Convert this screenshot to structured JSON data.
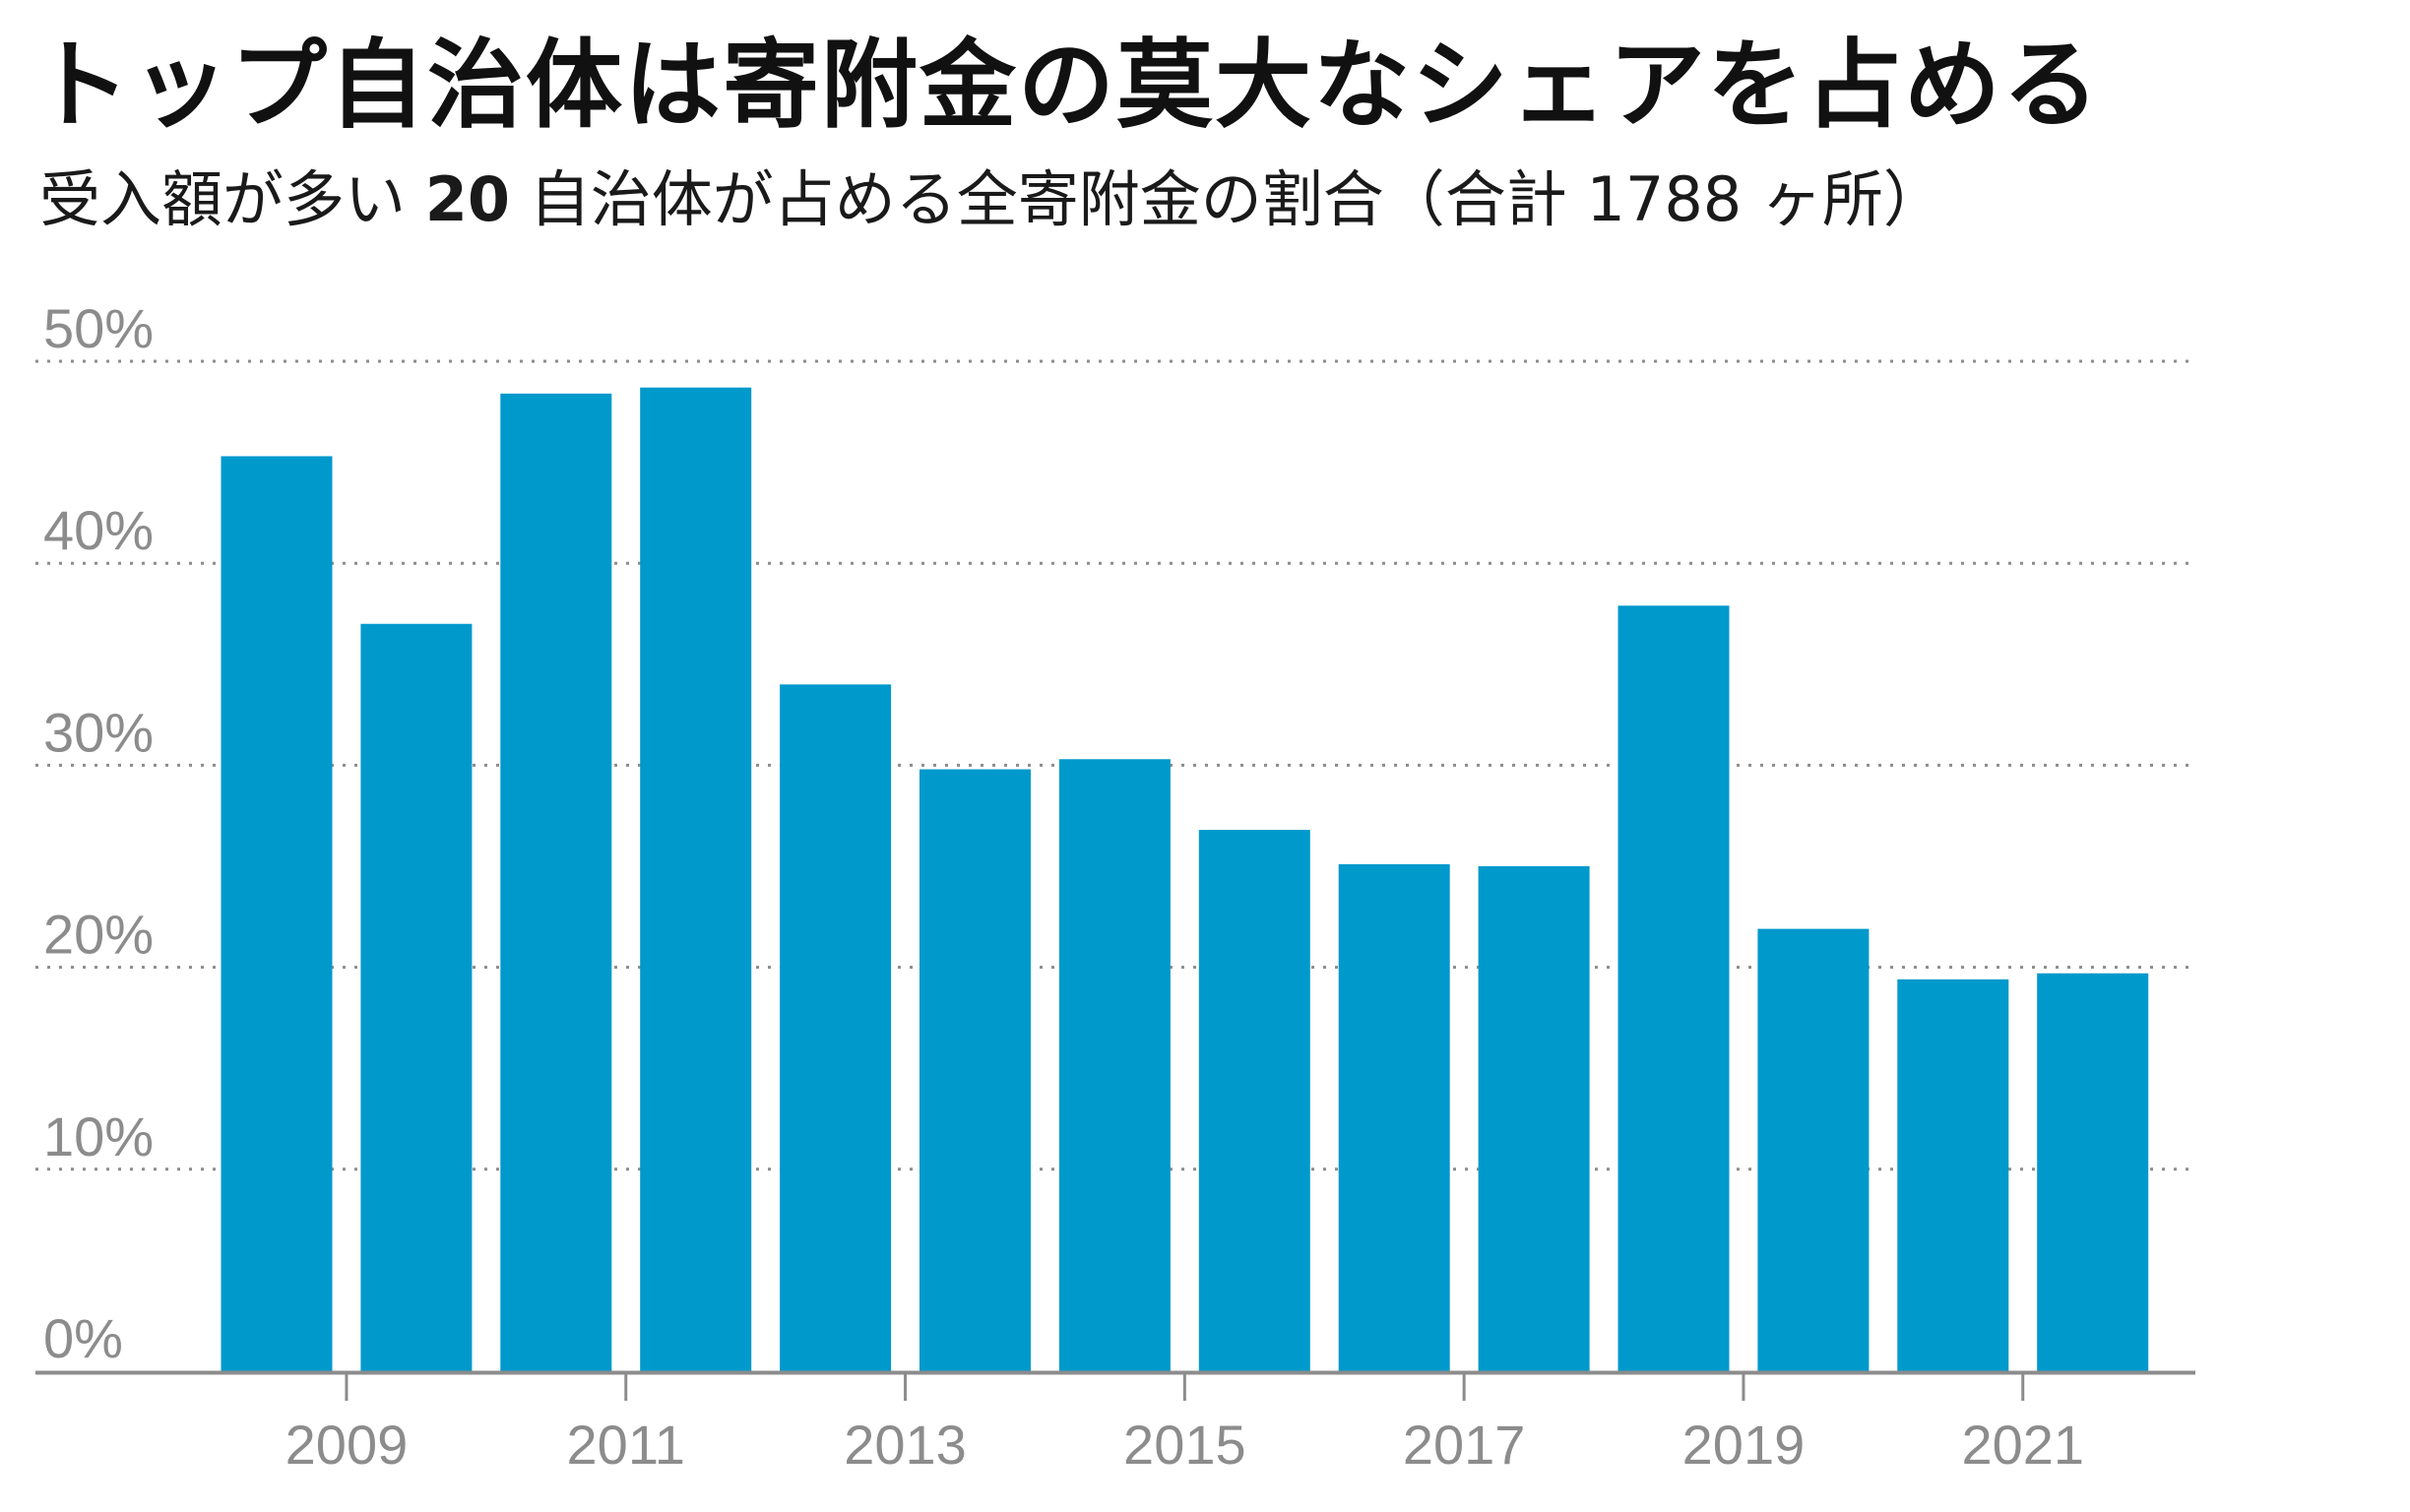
{
  "title": "トップ自治体は寄附金の莫大なシェアを占める",
  "subtitle": {
    "prefix": "受入額が多い",
    "number": "20",
    "suffix": "自治体が占める全寄附金の割合（合計 1788 ヶ所）"
  },
  "chart_data": {
    "type": "bar",
    "title": "トップ自治体は寄附金の莫大なシェアを占める",
    "subtitle": "受入額が多い 20 自治体が占める全寄附金の割合（合計 1788 ヶ所）",
    "categories": [
      "2008",
      "2009",
      "2010",
      "2011",
      "2012",
      "2013",
      "2014",
      "2015",
      "2016",
      "2017",
      "2018",
      "2019",
      "2020",
      "2021"
    ],
    "values": [
      45.3,
      37.0,
      48.4,
      48.7,
      34.0,
      29.8,
      30.3,
      26.8,
      25.1,
      25.0,
      37.9,
      21.9,
      19.4,
      19.7
    ],
    "x_tick_labels": [
      "2009",
      "2011",
      "2013",
      "2015",
      "2017",
      "2019",
      "2021"
    ],
    "y_ticks": [
      0,
      10,
      20,
      30,
      40,
      50
    ],
    "y_tick_format": "%",
    "ylim": [
      0,
      50
    ],
    "grid": true,
    "colors": {
      "bar": "#0099cc",
      "grid": "#8c8c8c",
      "axis": "#8c8c8c",
      "tick_label": "#8c8c8c"
    }
  }
}
